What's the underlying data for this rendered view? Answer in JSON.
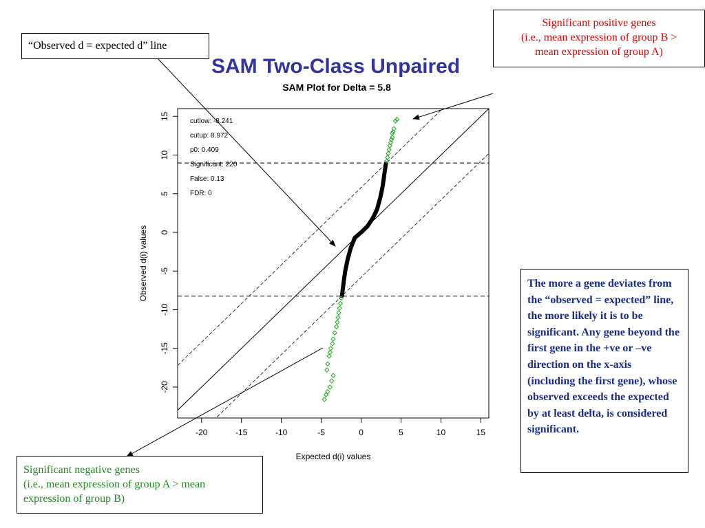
{
  "slide": {
    "title": "SAM Two-Class Unpaired"
  },
  "callouts": {
    "observed_line": "“Observed d = expected d” line",
    "positive_line1": "Significant positive genes",
    "positive_line2": "(i.e., mean expression of group B  >",
    "positive_line3": "mean expression of  group A)",
    "negative_line1": "Significant negative genes",
    "negative_line2": "(i.e., mean expression of group A > mean",
    "negative_line3": "expression of group B)",
    "note": "The more a gene deviates from the “observed = expected” line, the more likely it is to be significant. Any gene beyond the first gene in the +ve or –ve direction on the x-axis (including the first gene), whose observed exceeds the expected by at least delta, is considered significant."
  },
  "colors": {
    "title": "#3333a0",
    "significant_points": "#22aa22",
    "nonsignificant_points": "#000000",
    "positive_callout": "#e00000",
    "negative_callout": "#1e8a1e",
    "note_text": "#1a2b8a"
  },
  "chart_data": {
    "type": "scatter",
    "title": "SAM Plot for Delta = 5.8",
    "xlabel": "Expected d(i) values",
    "ylabel": "Observed d(i) values",
    "xlim": [
      -23,
      16
    ],
    "ylim": [
      -24,
      16
    ],
    "xticks": [
      -20,
      -15,
      -10,
      -5,
      0,
      5,
      10,
      15
    ],
    "yticks": [
      -20,
      -15,
      -10,
      -5,
      0,
      5,
      10,
      15
    ],
    "stats": [
      "cutlow:  -8.241",
      "cutup:  8.972",
      "p0:  0.409",
      "Significant:  220",
      "False:  0.13",
      "FDR:  0"
    ],
    "cutlow": -8.241,
    "cutup": 8.972,
    "delta": 5.8,
    "reference_lines": [
      {
        "name": "observed = expected",
        "slope": 1,
        "intercept": 0,
        "style": "solid"
      },
      {
        "name": "upper delta band",
        "slope": 1,
        "intercept": 5.8,
        "style": "dashed"
      },
      {
        "name": "lower delta band",
        "slope": 1,
        "intercept": -5.8,
        "style": "dashed"
      }
    ],
    "nonsignificant_curve": [
      [
        -2.4,
        -8.2
      ],
      [
        -2.2,
        -6.5
      ],
      [
        -2.0,
        -5.0
      ],
      [
        -1.7,
        -3.5
      ],
      [
        -1.3,
        -2.0
      ],
      [
        -0.8,
        -0.7
      ],
      [
        0.0,
        0.0
      ],
      [
        0.8,
        0.8
      ],
      [
        1.5,
        1.9
      ],
      [
        2.0,
        3.0
      ],
      [
        2.4,
        4.5
      ],
      [
        2.7,
        6.0
      ],
      [
        2.9,
        7.5
      ],
      [
        3.1,
        8.9
      ]
    ],
    "significant_positive": [
      [
        3.2,
        9.2
      ],
      [
        3.3,
        9.7
      ],
      [
        3.4,
        10.2
      ],
      [
        3.5,
        10.7
      ],
      [
        3.6,
        11.2
      ],
      [
        3.7,
        11.6
      ],
      [
        3.8,
        12.0
      ],
      [
        3.9,
        12.3
      ],
      [
        3.9,
        12.8
      ],
      [
        4.0,
        13.0
      ],
      [
        4.1,
        13.4
      ],
      [
        4.3,
        14.4
      ],
      [
        4.5,
        14.6
      ]
    ],
    "significant_negative": [
      [
        -2.5,
        -8.5
      ],
      [
        -2.6,
        -9.2
      ],
      [
        -2.7,
        -9.8
      ],
      [
        -2.8,
        -10.4
      ],
      [
        -2.9,
        -11.0
      ],
      [
        -3.0,
        -11.6
      ],
      [
        -3.1,
        -12.2
      ],
      [
        -3.3,
        -13.0
      ],
      [
        -3.5,
        -13.8
      ],
      [
        -3.6,
        -14.4
      ],
      [
        -3.8,
        -15.0
      ],
      [
        -3.9,
        -15.5
      ],
      [
        -4.0,
        -16.0
      ],
      [
        -4.2,
        -17.0
      ],
      [
        -4.3,
        -17.8
      ],
      [
        -3.5,
        -18.5
      ],
      [
        -3.7,
        -19.2
      ],
      [
        -3.9,
        -20.0
      ],
      [
        -4.2,
        -20.6
      ],
      [
        -4.4,
        -21.0
      ],
      [
        -4.6,
        -21.6
      ]
    ]
  }
}
